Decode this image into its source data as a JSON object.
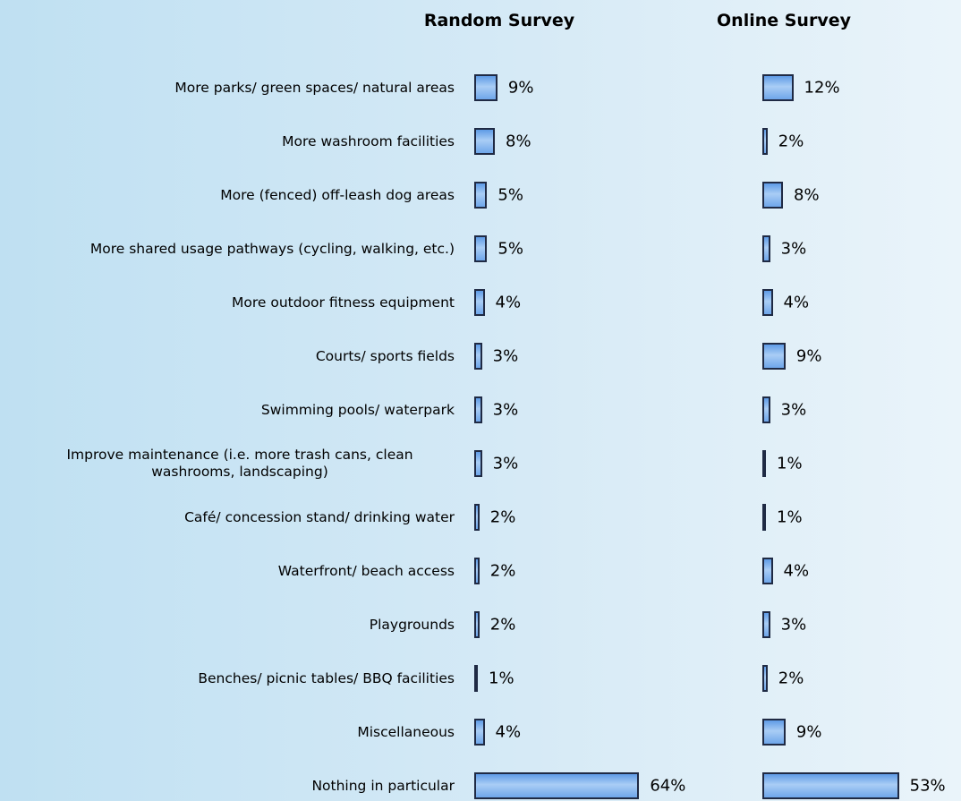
{
  "chart_data": {
    "type": "bar",
    "orientation": "horizontal",
    "categories": [
      "More parks/ green spaces/ natural areas",
      "More washroom facilities",
      "More (fenced) off-leash dog areas",
      "More shared usage pathways (cycling, walking, etc.)",
      "More outdoor fitness equipment",
      "Courts/ sports fields",
      "Swimming pools/ waterpark",
      "Improve maintenance (i.e. more trash cans, clean washrooms, landscaping)",
      "Café/ concession stand/ drinking water",
      "Waterfront/ beach access",
      "Playgrounds",
      "Benches/ picnic tables/ BBQ facilities",
      "Miscellaneous",
      "Nothing in particular"
    ],
    "series": [
      {
        "name": "Random Survey",
        "color": "#7fb2ee",
        "values": [
          9,
          8,
          5,
          5,
          4,
          3,
          3,
          3,
          2,
          2,
          2,
          1,
          4,
          64
        ],
        "value_labels": [
          "9%",
          "8%",
          "5%",
          "5%",
          "4%",
          "3%",
          "3%",
          "3%",
          "2%",
          "2%",
          "2%",
          "1%",
          "4%",
          "64%"
        ]
      },
      {
        "name": "Online Survey",
        "color": "#7fb2ee",
        "values": [
          12,
          2,
          8,
          3,
          4,
          9,
          3,
          1,
          1,
          4,
          3,
          2,
          9,
          53
        ],
        "value_labels": [
          "12%",
          "2%",
          "8%",
          "3%",
          "4%",
          "9%",
          "3%",
          "1%",
          "1%",
          "4%",
          "3%",
          "2%",
          "9%",
          "53%"
        ]
      }
    ]
  }
}
